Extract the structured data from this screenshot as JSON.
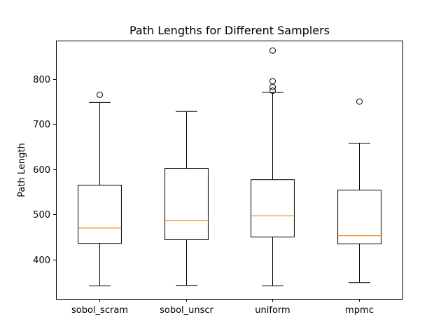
{
  "chart_data": {
    "type": "box",
    "title": "Path Lengths for Different Samplers",
    "xlabel": "",
    "ylabel": "Path Length",
    "ylim": [
      313,
      885
    ],
    "yticks": [
      400,
      500,
      600,
      700,
      800
    ],
    "grid": false,
    "colors": {
      "box": "#000000",
      "median": "#ff7f0e",
      "flier": "#000000"
    },
    "categories": [
      "sobol_scram",
      "sobol_unscr",
      "uniform",
      "mpmc"
    ],
    "boxes": [
      {
        "name": "sobol_scram",
        "whisker_low": 342,
        "q1": 436,
        "median": 470,
        "q3": 565,
        "whisker_high": 748,
        "fliers": [
          765
        ]
      },
      {
        "name": "sobol_unscr",
        "whisker_low": 343,
        "q1": 444,
        "median": 486,
        "q3": 602,
        "whisker_high": 728,
        "fliers": []
      },
      {
        "name": "uniform",
        "whisker_low": 342,
        "q1": 450,
        "median": 497,
        "q3": 577,
        "whisker_high": 770,
        "fliers": [
          774,
          782,
          795,
          863
        ]
      },
      {
        "name": "mpmc",
        "whisker_low": 349,
        "q1": 435,
        "median": 453,
        "q3": 554,
        "whisker_high": 658,
        "fliers": [
          750
        ]
      }
    ]
  }
}
